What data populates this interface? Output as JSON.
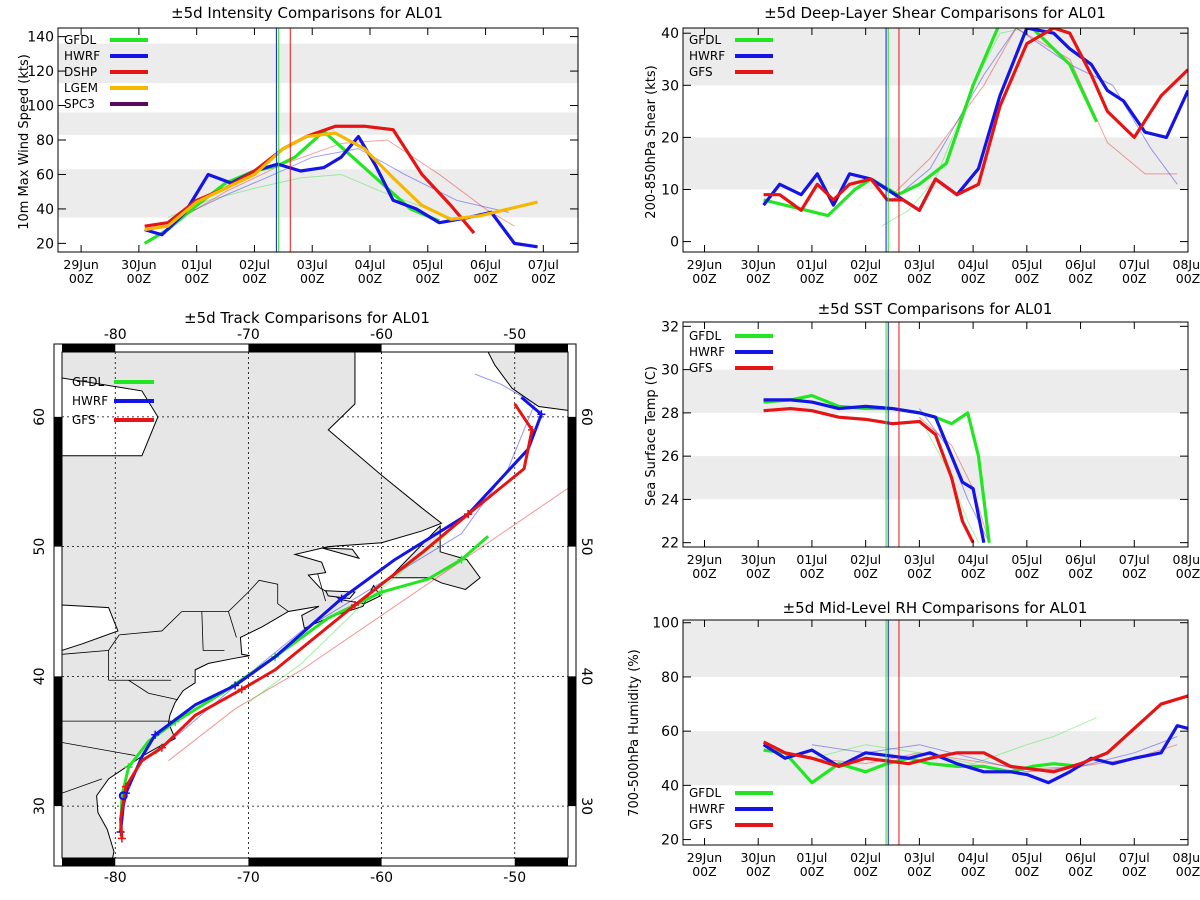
{
  "colors": {
    "GFDL": "#22e622",
    "HWRF": "#1414e6",
    "GFS": "#e61414",
    "DSHP": "#e61414",
    "LGEM": "#f5b800",
    "SPC3": "#5a0a5a",
    "band": "#ececec"
  },
  "time_ticks": [
    {
      "d": "29Jun",
      "z": "00Z"
    },
    {
      "d": "30Jun",
      "z": "00Z"
    },
    {
      "d": "01Jul",
      "z": "00Z"
    },
    {
      "d": "02Jul",
      "z": "00Z"
    },
    {
      "d": "03Jul",
      "z": "00Z"
    },
    {
      "d": "04Jul",
      "z": "00Z"
    },
    {
      "d": "05Jul",
      "z": "00Z"
    },
    {
      "d": "06Jul",
      "z": "00Z"
    },
    {
      "d": "07Jul",
      "z": "00Z"
    },
    {
      "d": "08Jul",
      "z": "00Z"
    }
  ],
  "chart_data": [
    {
      "id": "intensity",
      "type": "line",
      "title": "±5d Intensity Comparisons for AL01",
      "ylabel": "10m Max Wind Speed (kts)",
      "ylim": [
        15,
        145
      ],
      "yticks": [
        20,
        40,
        60,
        80,
        100,
        120,
        140
      ],
      "bands": [
        [
          35,
          63
        ],
        [
          83,
          96
        ],
        [
          113,
          136
        ]
      ],
      "vlines": [
        {
          "x": 4.38,
          "color": "HWRF"
        },
        {
          "x": 4.42,
          "color": "GFDL"
        },
        {
          "x": 4.62,
          "color": "GFS"
        }
      ],
      "legend": [
        "GFDL",
        "HWRF",
        "DSHP",
        "LGEM",
        "SPC3"
      ],
      "series": [
        {
          "name": "GFDL",
          "x": [
            2.1,
            2.5,
            3,
            3.5,
            4,
            4.4,
            4.7,
            5.2,
            5.7,
            6.2,
            6.7,
            7.2
          ],
          "y": [
            20,
            28,
            42,
            55,
            62,
            65,
            70,
            85,
            70,
            55,
            40,
            33
          ]
        },
        {
          "name": "HWRF",
          "x": [
            2.1,
            2.4,
            2.8,
            3.2,
            3.6,
            4,
            4.4,
            4.8,
            5.2,
            5.5,
            5.8,
            6.1,
            6.4,
            6.8,
            7.2,
            7.7,
            8.1,
            8.5,
            8.9
          ],
          "y": [
            28,
            25,
            38,
            60,
            55,
            62,
            66,
            62,
            64,
            70,
            82,
            65,
            45,
            40,
            32,
            35,
            38,
            20,
            18
          ]
        },
        {
          "name": "DSHP",
          "x": [
            2.1,
            2.5,
            3,
            3.5,
            4,
            4.5,
            4.9,
            5.4,
            5.9,
            6.4,
            6.9,
            7.4,
            7.8
          ],
          "y": [
            30,
            32,
            45,
            52,
            62,
            75,
            82,
            88,
            88,
            86,
            60,
            42,
            26
          ]
        },
        {
          "name": "LGEM",
          "x": [
            2.1,
            2.5,
            3,
            3.5,
            4,
            4.5,
            4.9,
            5.4,
            5.9,
            6.4,
            6.9,
            7.4,
            7.9,
            8.4,
            8.9
          ],
          "y": [
            28,
            30,
            44,
            52,
            60,
            75,
            82,
            84,
            75,
            58,
            42,
            34,
            36,
            40,
            44
          ]
        }
      ],
      "faint": [
        {
          "name": "GFDL",
          "x": [
            2.5,
            3.2,
            4,
            4.8,
            5.5,
            6.2,
            7
          ],
          "y": [
            35,
            45,
            52,
            58,
            60,
            50,
            40
          ]
        },
        {
          "name": "HWRF",
          "x": [
            2.5,
            3.5,
            4.2,
            5,
            5.8,
            6.6,
            7.5,
            8.4
          ],
          "y": [
            32,
            48,
            58,
            70,
            75,
            60,
            45,
            38
          ]
        },
        {
          "name": "GFS",
          "x": [
            2.5,
            3.5,
            4.5,
            5.5,
            6.3,
            7.2,
            8,
            8.5
          ],
          "y": [
            30,
            50,
            66,
            78,
            80,
            60,
            40,
            30
          ]
        }
      ]
    },
    {
      "id": "shear",
      "type": "line",
      "title": "±5d Deep-Layer Shear Comparisons for AL01",
      "ylabel": "200-850hPa Shear (kts)",
      "ylim": [
        -2,
        41
      ],
      "yticks": [
        0,
        10,
        20,
        30,
        40
      ],
      "bands": [
        [
          10,
          20
        ],
        [
          30,
          41
        ]
      ],
      "vlines": [
        {
          "x": 4.38,
          "color": "HWRF"
        },
        {
          "x": 4.42,
          "color": "GFDL"
        },
        {
          "x": 4.62,
          "color": "GFS"
        }
      ],
      "legend": [
        "GFDL",
        "HWRF",
        "GFS"
      ],
      "series": [
        {
          "name": "GFDL",
          "x": [
            2.1,
            3.3,
            3.8,
            4.1,
            4.6,
            5,
            5.5,
            6,
            6.5,
            7,
            7.4,
            7.8,
            8.3
          ],
          "y": [
            8,
            5,
            10,
            12,
            9,
            11,
            15,
            30,
            42,
            42,
            38,
            34,
            23
          ]
        },
        {
          "name": "HWRF",
          "x": [
            2.1,
            2.4,
            2.8,
            3.1,
            3.4,
            3.7,
            4.1,
            4.4,
            4.7,
            5,
            5.3,
            5.7,
            6.1,
            6.5,
            7,
            7.5,
            7.8,
            8.2,
            8.5,
            8.8,
            9.2,
            9.6,
            10
          ],
          "y": [
            7,
            11,
            9,
            13,
            7,
            13,
            12,
            10,
            8,
            6,
            12,
            9,
            14,
            28,
            41,
            40,
            37,
            34,
            29,
            27,
            21,
            20,
            29
          ]
        },
        {
          "name": "GFS",
          "x": [
            2.1,
            2.4,
            2.8,
            3.1,
            3.4,
            3.7,
            4.1,
            4.4,
            4.7,
            5,
            5.3,
            5.7,
            6.1,
            6.5,
            7,
            7.5,
            7.8,
            8.2,
            8.5,
            9,
            9.5,
            10
          ],
          "y": [
            9,
            9,
            6,
            11,
            8,
            11,
            12,
            8,
            8,
            6,
            12,
            9,
            11,
            26,
            38,
            41,
            40,
            32,
            25,
            20,
            28,
            33
          ]
        }
      ],
      "faint": [
        {
          "name": "GFDL",
          "x": [
            4.3,
            4.8,
            5.3,
            6,
            6.5,
            7
          ],
          "y": [
            3,
            6,
            12,
            30,
            40,
            41
          ]
        },
        {
          "name": "HWRF",
          "x": [
            4.5,
            5.2,
            6.2,
            6.8,
            7.8,
            8.6,
            9.3,
            9.8
          ],
          "y": [
            8,
            14,
            32,
            41,
            34,
            30,
            18,
            11
          ]
        },
        {
          "name": "GFS",
          "x": [
            4.5,
            5.2,
            6.2,
            6.8,
            7.8,
            8.5,
            9.2,
            9.8
          ],
          "y": [
            9,
            16,
            30,
            41,
            35,
            19,
            13,
            13
          ]
        }
      ]
    },
    {
      "id": "sst",
      "type": "line",
      "title": "±5d SST Comparisons for AL01",
      "ylabel": "Sea Surface Temp (C)",
      "ylim": [
        21.8,
        32.2
      ],
      "yticks": [
        22,
        24,
        26,
        28,
        30,
        32
      ],
      "bands": [
        [
          24,
          26
        ],
        [
          28,
          30
        ]
      ],
      "vlines": [
        {
          "x": 4.38,
          "color": "GFDL"
        },
        {
          "x": 4.42,
          "color": "HWRF"
        },
        {
          "x": 4.62,
          "color": "GFS"
        }
      ],
      "legend": [
        "GFDL",
        "HWRF",
        "GFS"
      ],
      "series": [
        {
          "name": "GFDL",
          "x": [
            2.1,
            2.6,
            3,
            3.5,
            4,
            4.5,
            5,
            5.3,
            5.6,
            5.9,
            6.1,
            6.3
          ],
          "y": [
            28.5,
            28.6,
            28.8,
            28.3,
            28.2,
            28.2,
            28,
            27.8,
            27.5,
            28,
            26,
            22
          ]
        },
        {
          "name": "HWRF",
          "x": [
            2.1,
            2.6,
            3,
            3.5,
            4,
            4.5,
            5,
            5.3,
            5.6,
            5.8,
            6,
            6.2
          ],
          "y": [
            28.6,
            28.6,
            28.5,
            28.2,
            28.3,
            28.2,
            28,
            27.8,
            26,
            24.8,
            24.5,
            22
          ]
        },
        {
          "name": "GFS",
          "x": [
            2.1,
            2.6,
            3,
            3.5,
            4,
            4.5,
            5,
            5.3,
            5.6,
            5.8,
            6
          ],
          "y": [
            28.1,
            28.2,
            28.1,
            27.8,
            27.7,
            27.5,
            27.6,
            27,
            25,
            23,
            22
          ]
        }
      ],
      "faint": [
        {
          "name": "GFDL",
          "x": [
            5,
            5.5,
            5.9,
            6.1
          ],
          "y": [
            27.8,
            25.5,
            23,
            22
          ]
        },
        {
          "name": "HWRF",
          "x": [
            5,
            5.5,
            5.9,
            6.3
          ],
          "y": [
            28.2,
            26.5,
            24,
            22
          ]
        },
        {
          "name": "GFS",
          "x": [
            5,
            5.6,
            6,
            6.3
          ],
          "y": [
            27.8,
            26.5,
            24.5,
            22
          ]
        }
      ]
    },
    {
      "id": "rh",
      "type": "line",
      "title": "±5d Mid-Level RH Comparisons for AL01",
      "ylabel": "700-500hPa Humidity (%)",
      "ylim": [
        18,
        101
      ],
      "yticks": [
        20,
        40,
        60,
        80,
        100
      ],
      "bands": [
        [
          40,
          60
        ],
        [
          80,
          101
        ]
      ],
      "vlines": [
        {
          "x": 4.38,
          "color": "GFDL"
        },
        {
          "x": 4.42,
          "color": "HWRF"
        },
        {
          "x": 4.62,
          "color": "GFS"
        }
      ],
      "legend": [
        "GFDL",
        "HWRF",
        "GFS"
      ],
      "series": [
        {
          "name": "GFDL",
          "x": [
            2.1,
            2.5,
            3,
            3.5,
            4,
            4.4,
            4.8,
            5.2,
            5.7,
            6.2,
            6.7,
            7.1,
            7.5,
            8
          ],
          "y": [
            53,
            52,
            41,
            48,
            45,
            48,
            50,
            48,
            47,
            47,
            45,
            47,
            48,
            47
          ]
        },
        {
          "name": "HWRF",
          "x": [
            2.1,
            2.5,
            3,
            3.5,
            4,
            4.4,
            4.8,
            5.2,
            5.7,
            6.2,
            6.7,
            7,
            7.4,
            7.8,
            8.2,
            8.6,
            9,
            9.5,
            9.8,
            10
          ],
          "y": [
            55,
            50,
            53,
            47,
            52,
            51,
            50,
            52,
            48,
            45,
            45,
            44,
            41,
            45,
            50,
            48,
            50,
            52,
            62,
            61
          ]
        },
        {
          "name": "GFS",
          "x": [
            2.1,
            2.5,
            3,
            3.5,
            4,
            4.4,
            4.8,
            5.2,
            5.7,
            6.2,
            6.7,
            7.1,
            7.5,
            8,
            8.5,
            9,
            9.5,
            10
          ],
          "y": [
            56,
            52,
            50,
            47,
            50,
            49,
            48,
            50,
            52,
            52,
            47,
            46,
            45,
            48,
            52,
            61,
            70,
            73
          ]
        }
      ],
      "faint": [
        {
          "name": "GFDL",
          "x": [
            3,
            4,
            5,
            6,
            7,
            7.5,
            8.3
          ],
          "y": [
            50,
            55,
            52,
            48,
            55,
            58,
            65
          ]
        },
        {
          "name": "HWRF",
          "x": [
            3,
            4,
            5,
            6,
            7,
            8,
            9,
            9.8
          ],
          "y": [
            55,
            52,
            55,
            50,
            45,
            47,
            52,
            58
          ]
        },
        {
          "name": "GFS",
          "x": [
            3,
            4,
            5,
            6,
            7,
            8,
            9,
            9.8
          ],
          "y": [
            50,
            48,
            52,
            49,
            46,
            47,
            50,
            55
          ]
        }
      ]
    },
    {
      "id": "track",
      "type": "scatter",
      "title": "±5d Track Comparisons for AL01",
      "xlim": [
        -84,
        -46
      ],
      "ylim": [
        26,
        65
      ],
      "xticks": [
        -80,
        -70,
        -60,
        -50
      ],
      "yticks": [
        30,
        40,
        50,
        60
      ],
      "xlabels": [
        "-80",
        "-70",
        "-60",
        "-50"
      ],
      "ylabels": [
        "30",
        "40",
        "50",
        "60"
      ],
      "legend": [
        "GFDL",
        "HWRF",
        "GFS"
      ],
      "series": [
        {
          "name": "GFDL",
          "lon": [
            -79.6,
            -79.5,
            -79,
            -77.5,
            -75.5,
            -72,
            -68,
            -64,
            -60,
            -56.5,
            -54,
            -52
          ],
          "lat": [
            28,
            30.8,
            33,
            35,
            36.5,
            38.7,
            41.5,
            44.5,
            46.5,
            47.5,
            49,
            50.8
          ]
        },
        {
          "name": "HWRF",
          "lon": [
            -79.6,
            -79.4,
            -79.2,
            -78,
            -77,
            -74,
            -71,
            -68,
            -63,
            -59,
            -53.5,
            -49,
            -48,
            -49.5
          ],
          "lat": [
            28,
            30,
            31,
            33.8,
            35.5,
            37.8,
            39.3,
            41.5,
            46,
            49,
            52.5,
            57.5,
            60.2,
            61.5
          ]
        },
        {
          "name": "GFS",
          "lon": [
            -79.5,
            -79.6,
            -79.2,
            -78,
            -76.5,
            -74,
            -70.5,
            -68,
            -62,
            -57,
            -53.5,
            -49.3,
            -48.7,
            -50
          ],
          "lat": [
            27.5,
            29,
            31.5,
            33.5,
            34.5,
            37,
            39,
            40.5,
            45.5,
            49.5,
            52.5,
            56,
            59,
            61
          ]
        }
      ],
      "faint": [
        {
          "name": "HWRF",
          "lon": [
            -77,
            -73,
            -69,
            -66,
            -62,
            -58,
            -54,
            -50.5,
            -48.5,
            -51,
            -53
          ],
          "lat": [
            34,
            37.5,
            41,
            43.5,
            46,
            48.5,
            51,
            56,
            61,
            62.5,
            63.3
          ]
        },
        {
          "name": "GFS",
          "lon": [
            -76,
            -71,
            -66,
            -61,
            -56,
            -51,
            -46
          ],
          "lat": [
            33.5,
            37.5,
            40.5,
            44,
            47.5,
            51,
            54.5
          ]
        },
        {
          "name": "GFDL",
          "lon": [
            -70,
            -66,
            -62,
            -58,
            -55
          ],
          "lat": [
            38,
            41,
            45,
            48.5,
            51
          ]
        }
      ]
    }
  ]
}
